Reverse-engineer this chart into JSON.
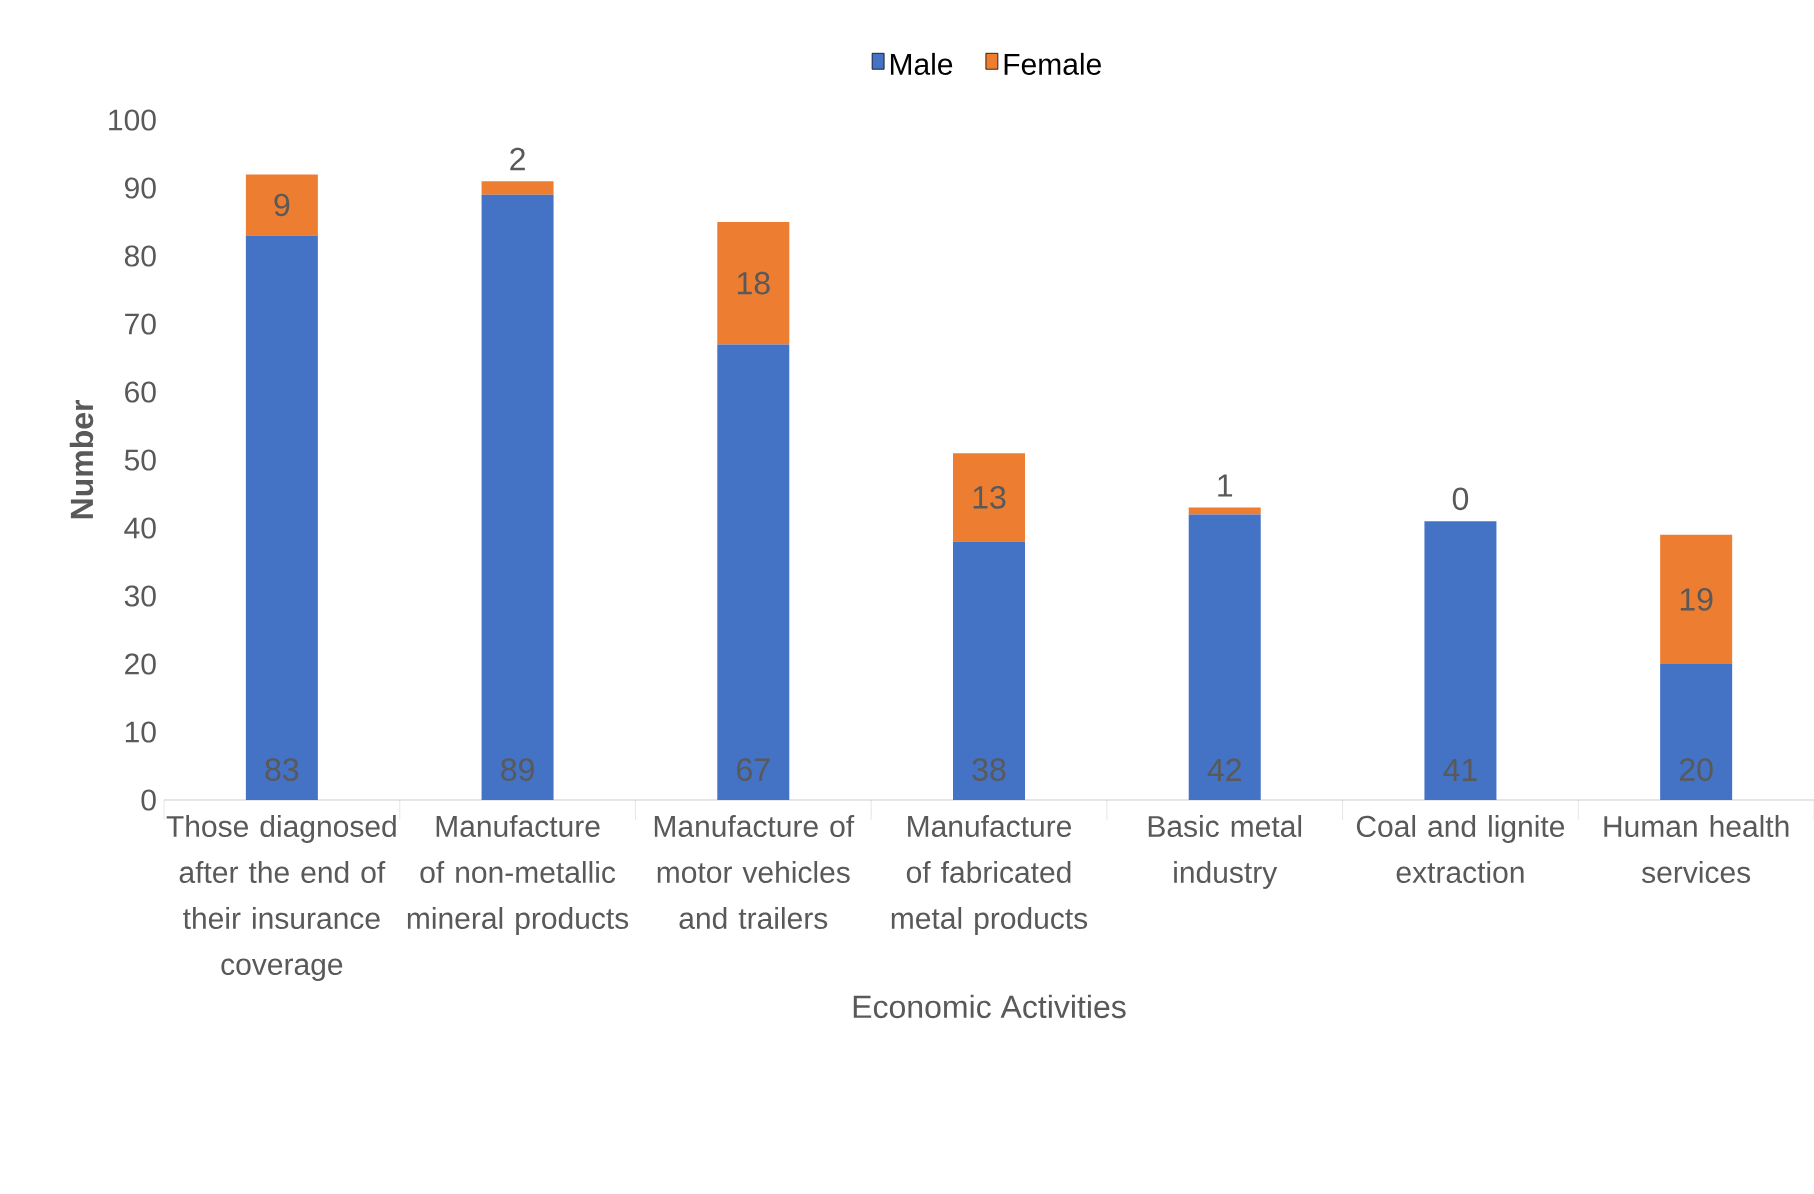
{
  "chart_data": {
    "type": "bar",
    "stacked": true,
    "xlabel": "Economic Activities",
    "ylabel": "Number",
    "categories": [
      "Those diagnosed after the end of their insurance coverage",
      "Manufacture of non-metallic mineral products",
      "Manufacture of motor vehicles and trailers",
      "Manufacture of fabricated metal products",
      "Basic metal industry",
      "Coal and lignite extraction",
      "Human health services"
    ],
    "series": [
      {
        "name": "Male",
        "color": "#4472c4",
        "values": [
          83,
          89,
          67,
          38,
          42,
          41,
          20
        ]
      },
      {
        "name": "Female",
        "color": "#ed7d31",
        "values": [
          9,
          2,
          18,
          13,
          1,
          0,
          19
        ]
      }
    ],
    "ylim": [
      0,
      100
    ],
    "yticks": [
      0,
      10,
      20,
      30,
      40,
      50,
      60,
      70,
      80,
      90,
      100
    ],
    "data_labels": true,
    "legend": "top",
    "grid": false
  }
}
